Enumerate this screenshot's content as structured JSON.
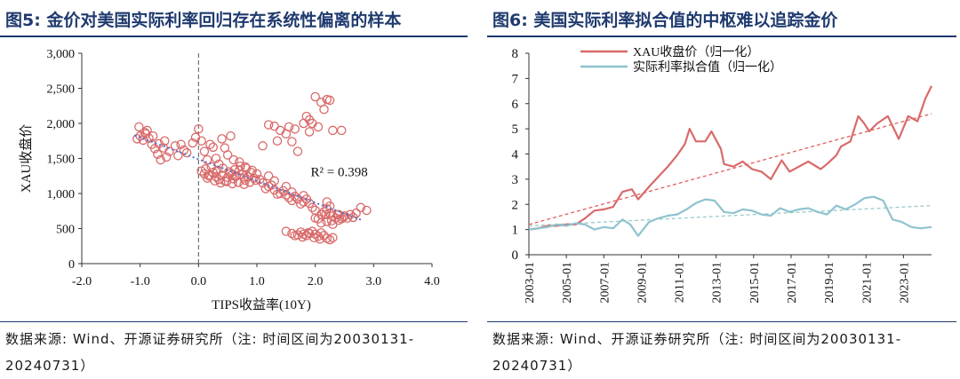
{
  "left": {
    "title": "图5:  金价对美国实际利率回归存在系统性偏离的样本",
    "source": "数据来源: Wind、开源证券研究所（注: 时间区间为20030131-20240731）"
  },
  "right": {
    "title": "图6:  美国实际利率拟合值的中枢难以追踪金价",
    "source": "数据来源: Wind、开源证券研究所（注: 时间区间为20030131-20240731）"
  },
  "colors": {
    "gold": "#d96a6a",
    "fit": "#8fc3cf",
    "trend_gold": "#e06060",
    "trend_fit": "#9cc9c9",
    "scatter_fit": "#5b6fc9",
    "title_blue": "#1f3a6e"
  },
  "chart_data": [
    {
      "type": "scatter",
      "xlabel": "TIPS收益率(10Y)",
      "ylabel": "XAU收盘价",
      "xlim": [
        -2.0,
        4.0
      ],
      "ylim": [
        0,
        3000
      ],
      "xticks": [
        "-2.0",
        "-1.0",
        "0.0",
        "1.0",
        "2.0",
        "3.0",
        "4.0"
      ],
      "yticks": [
        "0",
        "500",
        "1,000",
        "1,500",
        "2,000",
        "2,500",
        "3,000"
      ],
      "annotation": "R² = 0.398",
      "trendline": {
        "x": [
          -1.1,
          2.8
        ],
        "y": [
          1830,
          620
        ]
      },
      "points": [
        [
          -1.05,
          1780
        ],
        [
          -1.0,
          1820
        ],
        [
          -0.95,
          1760
        ],
        [
          -0.9,
          1850
        ],
        [
          -1.02,
          1950
        ],
        [
          -0.88,
          1900
        ],
        [
          -0.8,
          1700
        ],
        [
          -0.75,
          1640
        ],
        [
          -0.7,
          1560
        ],
        [
          -0.65,
          1480
        ],
        [
          -0.6,
          1650
        ],
        [
          -0.55,
          1520
        ],
        [
          -0.5,
          1600
        ],
        [
          -0.4,
          1680
        ],
        [
          -0.35,
          1540
        ],
        [
          -0.3,
          1700
        ],
        [
          -0.25,
          1620
        ],
        [
          -0.2,
          1580
        ],
        [
          -0.1,
          1720
        ],
        [
          -0.05,
          1800
        ],
        [
          0.0,
          1920
        ],
        [
          0.05,
          1750
        ],
        [
          0.1,
          1600
        ],
        [
          0.15,
          1480
        ],
        [
          0.2,
          1700
        ],
        [
          0.25,
          1660
        ],
        [
          0.3,
          1500
        ],
        [
          0.35,
          1420
        ],
        [
          0.4,
          1780
        ],
        [
          0.45,
          1650
        ],
        [
          0.5,
          1550
        ],
        [
          0.55,
          1820
        ],
        [
          0.6,
          1480
        ],
        [
          0.7,
          1450
        ],
        [
          0.8,
          1380
        ],
        [
          -0.85,
          1790
        ],
        [
          -0.92,
          1870
        ],
        [
          -0.78,
          1820
        ],
        [
          -0.68,
          1710
        ],
        [
          -0.58,
          1750
        ],
        [
          0.05,
          1320
        ],
        [
          0.1,
          1280
        ],
        [
          0.15,
          1220
        ],
        [
          0.2,
          1260
        ],
        [
          0.25,
          1300
        ],
        [
          0.3,
          1240
        ],
        [
          0.35,
          1200
        ],
        [
          0.4,
          1260
        ],
        [
          0.45,
          1180
        ],
        [
          0.5,
          1230
        ],
        [
          0.55,
          1290
        ],
        [
          0.6,
          1210
        ],
        [
          0.65,
          1250
        ],
        [
          0.7,
          1330
        ],
        [
          0.75,
          1270
        ],
        [
          0.8,
          1190
        ],
        [
          0.85,
          1240
        ],
        [
          0.9,
          1300
        ],
        [
          0.95,
          1220
        ],
        [
          1.0,
          1280
        ],
        [
          0.12,
          1350
        ],
        [
          0.22,
          1380
        ],
        [
          0.32,
          1330
        ],
        [
          0.42,
          1360
        ],
        [
          0.52,
          1310
        ],
        [
          0.62,
          1340
        ],
        [
          0.72,
          1390
        ],
        [
          0.82,
          1360
        ],
        [
          0.92,
          1330
        ],
        [
          0.28,
          1180
        ],
        [
          0.38,
          1150
        ],
        [
          0.48,
          1170
        ],
        [
          0.58,
          1140
        ],
        [
          0.68,
          1160
        ],
        [
          0.78,
          1130
        ],
        [
          0.88,
          1160
        ],
        [
          0.98,
          1190
        ],
        [
          0.18,
          1250
        ],
        [
          0.58,
          1270
        ],
        [
          0.78,
          1220
        ],
        [
          1.05,
          1200
        ],
        [
          1.1,
          1150
        ],
        [
          1.2,
          1100
        ],
        [
          1.3,
          1050
        ],
        [
          1.4,
          1000
        ],
        [
          1.5,
          980
        ],
        [
          1.6,
          900
        ],
        [
          1.7,
          920
        ],
        [
          1.8,
          880
        ],
        [
          1.9,
          860
        ],
        [
          1.25,
          1120
        ],
        [
          1.35,
          990
        ],
        [
          1.45,
          1040
        ],
        [
          1.55,
          940
        ],
        [
          1.65,
          960
        ],
        [
          1.75,
          850
        ],
        [
          1.85,
          920
        ],
        [
          1.95,
          800
        ],
        [
          1.15,
          1070
        ],
        [
          1.5,
          1100
        ],
        [
          1.2,
          1250
        ],
        [
          1.3,
          1180
        ],
        [
          1.6,
          1020
        ],
        [
          1.8,
          970
        ],
        [
          1.2,
          1980
        ],
        [
          1.3,
          1960
        ],
        [
          1.4,
          1900
        ],
        [
          1.5,
          1850
        ],
        [
          1.55,
          1950
        ],
        [
          1.6,
          1740
        ],
        [
          1.65,
          1920
        ],
        [
          1.1,
          1680
        ],
        [
          1.8,
          2000
        ],
        [
          1.85,
          2100
        ],
        [
          1.9,
          2050
        ],
        [
          2.0,
          2380
        ],
        [
          2.1,
          2300
        ],
        [
          2.15,
          2200
        ],
        [
          2.2,
          2340
        ],
        [
          2.25,
          2330
        ],
        [
          2.3,
          1900
        ],
        [
          2.45,
          1900
        ],
        [
          2.05,
          1950
        ],
        [
          1.95,
          2000
        ],
        [
          1.7,
          1600
        ],
        [
          1.35,
          1750
        ],
        [
          1.9,
          1880
        ],
        [
          1.5,
          460
        ],
        [
          1.6,
          430
        ],
        [
          1.7,
          410
        ],
        [
          1.75,
          450
        ],
        [
          1.8,
          420
        ],
        [
          1.85,
          400
        ],
        [
          1.9,
          430
        ],
        [
          1.95,
          460
        ],
        [
          2.0,
          420
        ],
        [
          2.05,
          390
        ],
        [
          2.1,
          440
        ],
        [
          2.15,
          400
        ],
        [
          2.2,
          360
        ],
        [
          2.25,
          340
        ],
        [
          2.3,
          370
        ],
        [
          1.65,
          400
        ],
        [
          1.78,
          380
        ],
        [
          1.88,
          440
        ],
        [
          1.98,
          370
        ],
        [
          2.08,
          350
        ],
        [
          2.0,
          650
        ],
        [
          2.1,
          700
        ],
        [
          2.15,
          740
        ],
        [
          2.2,
          780
        ],
        [
          2.25,
          720
        ],
        [
          2.3,
          680
        ],
        [
          2.35,
          650
        ],
        [
          2.4,
          700
        ],
        [
          2.45,
          640
        ],
        [
          2.5,
          680
        ],
        [
          2.55,
          650
        ],
        [
          2.6,
          700
        ],
        [
          2.65,
          660
        ],
        [
          2.7,
          720
        ],
        [
          2.78,
          800
        ],
        [
          2.88,
          760
        ],
        [
          2.2,
          600
        ],
        [
          2.3,
          560
        ],
        [
          2.4,
          620
        ],
        [
          2.1,
          580
        ],
        [
          2.2,
          880
        ],
        [
          2.25,
          820
        ],
        [
          2.0,
          760
        ],
        [
          2.05,
          640
        ],
        [
          2.18,
          700
        ],
        [
          2.28,
          610
        ],
        [
          2.38,
          700
        ],
        [
          2.48,
          660
        ]
      ]
    },
    {
      "type": "line",
      "ylim": [
        0,
        8
      ],
      "yticks": [
        "0",
        "1",
        "2",
        "3",
        "4",
        "5",
        "6",
        "7",
        "8"
      ],
      "xticks": [
        "2003-01",
        "2005-01",
        "2007-01",
        "2009-01",
        "2011-01",
        "2013-01",
        "2015-01",
        "2017-01",
        "2019-01",
        "2021-01",
        "2023-01"
      ],
      "x_range": [
        "2003-01",
        "2024-07"
      ],
      "trendlines": [
        {
          "series": "XAU收盘价（归一化）",
          "x": [
            "2003-01",
            "2024-07"
          ],
          "y": [
            1.2,
            5.6
          ]
        },
        {
          "series": "实际利率拟合值（归一化）",
          "x": [
            "2003-01",
            "2024-07"
          ],
          "y": [
            1.15,
            1.95
          ]
        }
      ],
      "series": [
        {
          "name": "XAU收盘价（归一化）",
          "x": [
            "2003-01",
            "2003-07",
            "2004-01",
            "2004-07",
            "2005-01",
            "2005-07",
            "2006-01",
            "2006-07",
            "2007-01",
            "2007-07",
            "2008-01",
            "2008-07",
            "2008-11",
            "2009-06",
            "2009-12",
            "2010-06",
            "2010-12",
            "2011-05",
            "2011-08",
            "2011-12",
            "2012-06",
            "2012-10",
            "2013-04",
            "2013-06",
            "2013-12",
            "2014-06",
            "2014-12",
            "2015-06",
            "2015-12",
            "2016-07",
            "2016-12",
            "2017-06",
            "2017-12",
            "2018-08",
            "2018-12",
            "2019-06",
            "2019-09",
            "2020-03",
            "2020-08",
            "2020-12",
            "2021-03",
            "2021-08",
            "2022-03",
            "2022-10",
            "2023-04",
            "2023-10",
            "2024-03",
            "2024-07"
          ],
          "y": [
            1.0,
            1.05,
            1.15,
            1.15,
            1.2,
            1.2,
            1.45,
            1.75,
            1.8,
            1.9,
            2.5,
            2.6,
            2.2,
            2.7,
            3.1,
            3.5,
            3.95,
            4.4,
            5.0,
            4.5,
            4.5,
            4.9,
            4.2,
            3.6,
            3.5,
            3.7,
            3.4,
            3.3,
            3.0,
            3.75,
            3.3,
            3.5,
            3.7,
            3.4,
            3.6,
            3.95,
            4.3,
            4.5,
            5.5,
            5.2,
            4.9,
            5.2,
            5.5,
            4.6,
            5.5,
            5.3,
            6.2,
            6.7
          ]
        },
        {
          "name": "实际利率拟合值（归一化）",
          "x": [
            "2003-01",
            "2003-07",
            "2004-01",
            "2004-07",
            "2005-01",
            "2005-07",
            "2006-01",
            "2006-07",
            "2007-01",
            "2007-07",
            "2008-01",
            "2008-06",
            "2008-11",
            "2009-06",
            "2009-12",
            "2010-06",
            "2010-12",
            "2011-06",
            "2011-12",
            "2012-06",
            "2012-12",
            "2013-06",
            "2013-12",
            "2014-06",
            "2014-12",
            "2015-06",
            "2015-12",
            "2016-06",
            "2016-12",
            "2017-06",
            "2017-12",
            "2018-06",
            "2018-12",
            "2019-06",
            "2019-12",
            "2020-06",
            "2020-12",
            "2021-06",
            "2021-12",
            "2022-06",
            "2022-12",
            "2023-06",
            "2023-12",
            "2024-07"
          ],
          "y": [
            1.0,
            1.05,
            1.1,
            1.2,
            1.15,
            1.25,
            1.2,
            1.0,
            1.1,
            1.05,
            1.4,
            1.2,
            0.75,
            1.3,
            1.45,
            1.55,
            1.6,
            1.8,
            2.05,
            2.2,
            2.15,
            1.7,
            1.65,
            1.8,
            1.75,
            1.6,
            1.55,
            1.85,
            1.7,
            1.8,
            1.85,
            1.7,
            1.6,
            1.95,
            1.8,
            2.0,
            2.25,
            2.3,
            2.15,
            1.4,
            1.3,
            1.1,
            1.05,
            1.1
          ]
        }
      ]
    }
  ]
}
